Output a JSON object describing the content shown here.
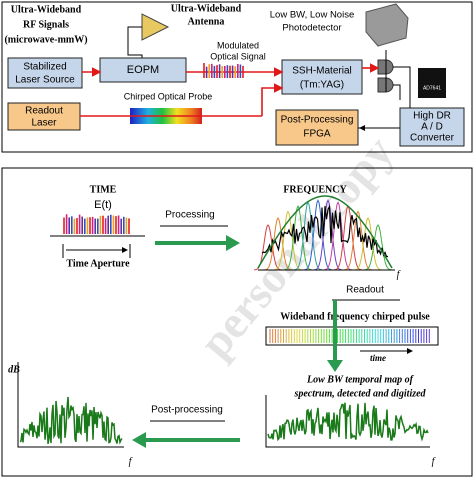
{
  "top_panel": {
    "rf_signals": [
      "Ultra-Wideband",
      "RF Signals",
      "(microwave-mmW)"
    ],
    "antenna": [
      "Ultra-Wideband",
      "Antenna"
    ],
    "photodetector": [
      "Low BW, Low Noise",
      "Photodetector"
    ],
    "laser_source": [
      "Stabilized",
      "Laser Source"
    ],
    "eopm": "EOPM",
    "modulated_signal": [
      "Modulated",
      "Optical Signal"
    ],
    "ssh_material": [
      "SSH-Material",
      "(Tm:YAG)"
    ],
    "readout_laser": [
      "Readout",
      "Laser"
    ],
    "chirped_probe": "Chirped Optical Probe",
    "fpga": [
      "Post-Processing",
      "FPGA"
    ],
    "adc": [
      "High DR",
      "A / D",
      "Converter"
    ],
    "chip_label": "AD7641"
  },
  "bottom_panel": {
    "time_title": "TIME",
    "field": "E(t)",
    "time_aperture": "Time Aperture",
    "processing": "Processing",
    "frequency_title": "FREQUENCY",
    "freq_axis": "f",
    "readout": "Readout",
    "chirped_pulse": "Wideband frequency chirped pulse",
    "time_axis": "time",
    "temporal_map": [
      "Low BW temporal map of",
      "spectrum, detected and digitized"
    ],
    "db_axis": "dB",
    "post_processing": "Post-processing",
    "result_axis": "f",
    "map_axis": "f"
  },
  "watermark": "personal copy"
}
